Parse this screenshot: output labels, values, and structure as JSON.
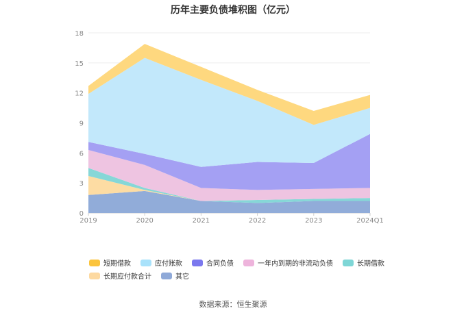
{
  "chart_data": {
    "type": "area",
    "title": "历年主要负债堆积图（亿元）",
    "categories": [
      "2019",
      "2020",
      "2021",
      "2022",
      "2023",
      "2024Q1"
    ],
    "y_ticks": [
      "0",
      "3",
      "6",
      "9",
      "12",
      "15",
      "18"
    ],
    "ylim": [
      0,
      18
    ],
    "stacked": true,
    "grid": true,
    "legend_position": "bottom",
    "series": [
      {
        "name": "其它",
        "color": "#91acd9",
        "values": [
          1.8,
          2.2,
          1.2,
          1.0,
          1.2,
          1.2
        ]
      },
      {
        "name": "长期应付款合计",
        "color": "#fddca3",
        "values": [
          1.9,
          0.1,
          0.0,
          0.0,
          0.0,
          0.0
        ]
      },
      {
        "name": "长期借款",
        "color": "#86d7d7",
        "values": [
          0.8,
          0.2,
          0.0,
          0.3,
          0.2,
          0.3
        ]
      },
      {
        "name": "一年内到期的非流动负债",
        "color": "#eec4e1",
        "values": [
          1.8,
          2.3,
          1.3,
          1.0,
          1.0,
          1.0
        ]
      },
      {
        "name": "合同负债",
        "color": "#a4a0f3",
        "values": [
          0.8,
          1.1,
          2.1,
          2.8,
          2.6,
          5.4
        ]
      },
      {
        "name": "应付账款",
        "color": "#c2e8fb",
        "values": [
          4.8,
          9.6,
          8.7,
          6.1,
          3.8,
          2.6
        ]
      },
      {
        "name": "短期借款",
        "color": "#fed87f",
        "values": [
          0.8,
          1.4,
          1.3,
          1.1,
          1.4,
          1.3
        ]
      }
    ]
  },
  "legend": [
    {
      "label": "短期借款",
      "color": "#fbc43c"
    },
    {
      "label": "应付账款",
      "color": "#a9e2fb"
    },
    {
      "label": "合同负债",
      "color": "#7b78ee"
    },
    {
      "label": "一年内到期的非流动负债",
      "color": "#eeb4dc"
    },
    {
      "label": "长期借款",
      "color": "#7ed6d6"
    },
    {
      "label": "长期应付款合计",
      "color": "#fdd9a0"
    },
    {
      "label": "其它",
      "color": "#8fa9d8"
    }
  ],
  "source": "数据来源：恒生聚源"
}
